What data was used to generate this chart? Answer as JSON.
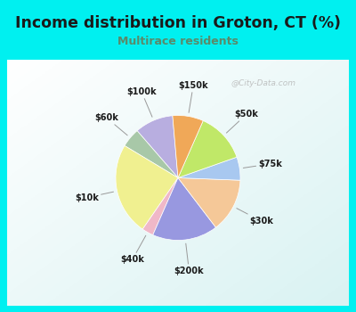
{
  "title": "Income distribution in Groton, CT (%)",
  "subtitle": "Multirace residents",
  "title_color": "#1a1a1a",
  "subtitle_color": "#5a8a6a",
  "bg_outer": "#00f0f0",
  "bg_inner_color": "#e8f8ee",
  "labels": [
    "$100k",
    "$60k",
    "$10k",
    "$40k",
    "$200k",
    "$30k",
    "$75k",
    "$50k",
    "$150k"
  ],
  "values": [
    10,
    5,
    24,
    3,
    17,
    14,
    6,
    13,
    8
  ],
  "colors": [
    "#b8aee0",
    "#a8c8a8",
    "#f0f090",
    "#f0b8c8",
    "#9898e0",
    "#f5c898",
    "#a8c8f0",
    "#c0e868",
    "#f0a858"
  ],
  "watermark": "@City-Data.com"
}
